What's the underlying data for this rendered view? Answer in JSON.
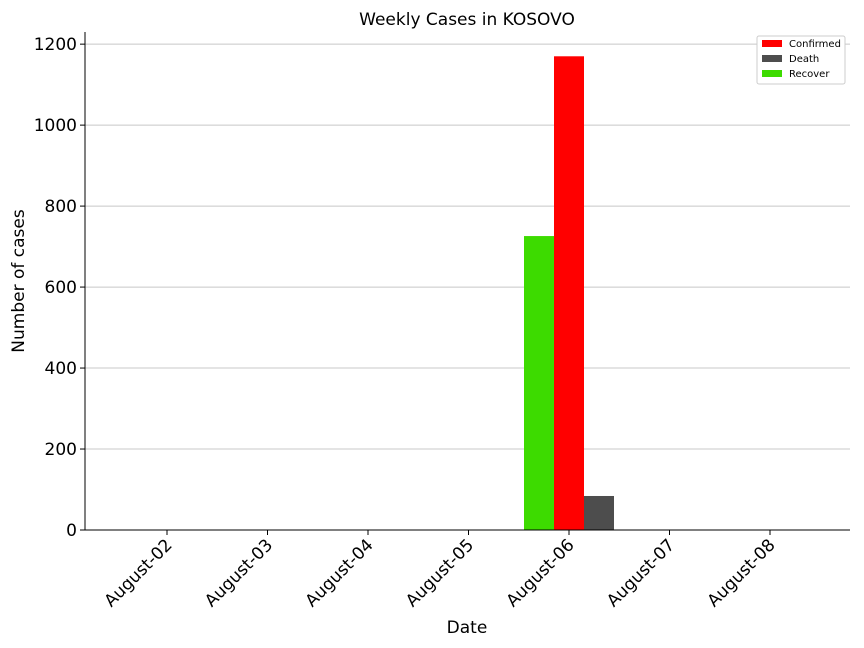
{
  "chart_data": {
    "type": "bar",
    "title": "Weekly Cases in KOSOVO",
    "xlabel": "Date",
    "ylabel": "Number of cases",
    "categories": [
      "August-02",
      "August-03",
      "August-04",
      "August-05",
      "August-06",
      "August-07",
      "August-08"
    ],
    "series": [
      {
        "name": "Recover",
        "color": "#3ddb00",
        "values": [
          0,
          0,
          0,
          0,
          726,
          0,
          0
        ]
      },
      {
        "name": "Confirmed",
        "color": "#ff0000",
        "values": [
          0,
          0,
          0,
          0,
          1170,
          0,
          0
        ]
      },
      {
        "name": "Death",
        "color": "#4d4d4d",
        "values": [
          0,
          0,
          0,
          0,
          84,
          0,
          0
        ]
      }
    ],
    "legend_order": [
      "Confirmed",
      "Death",
      "Recover"
    ],
    "ylim": [
      0,
      1230
    ],
    "yticks": [
      0,
      200,
      400,
      600,
      800,
      1000,
      1200
    ],
    "grid": "y",
    "legend_position": "top-right"
  }
}
